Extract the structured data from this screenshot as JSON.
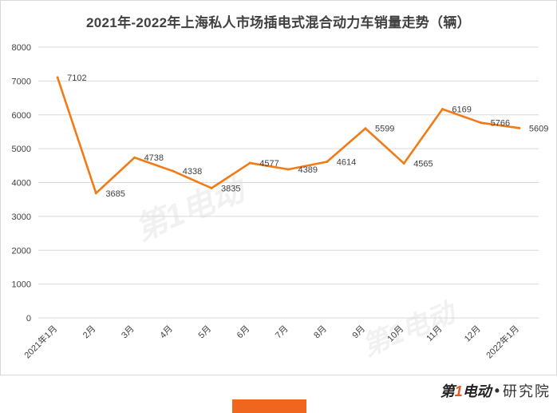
{
  "chart_data": {
    "type": "line",
    "title": "2021年-2022年上海私人市场插电式混合动力车销量走势（辆）",
    "categories": [
      "2021年1月",
      "2月",
      "3月",
      "4月",
      "5月",
      "6月",
      "7月",
      "8月",
      "9月",
      "10月",
      "11月",
      "12月",
      "2022年1月"
    ],
    "series": [
      {
        "values": [
          7102,
          3685,
          4738,
          4338,
          3835,
          4577,
          4389,
          4614,
          5599,
          4565,
          6169,
          5766,
          5609
        ]
      }
    ],
    "ylim": [
      0,
      8000
    ],
    "yticks": [
      0,
      1000,
      2000,
      3000,
      4000,
      5000,
      6000,
      7000,
      8000
    ],
    "grid": true,
    "legend": "none",
    "line_color": "#f07b17",
    "grid_color": "#d9d9d9",
    "text_color": "#404040"
  },
  "watermark": {
    "text": "第1电动"
  },
  "footer": {
    "logo_prefix": "第",
    "logo_accent": "1",
    "logo_suffix": "电动",
    "separator": "•",
    "research": "研究院"
  }
}
